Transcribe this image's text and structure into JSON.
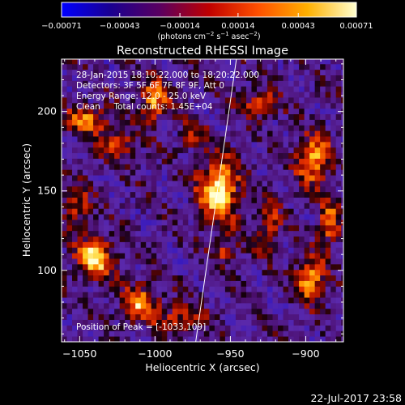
{
  "chart_data": {
    "type": "heatmap",
    "title": "Reconstructed RHESSI Image",
    "xlabel": "Heliocentric X (arcsec)",
    "ylabel": "Heliocentric Y (arcsec)",
    "xlim": [
      -1062,
      -875
    ],
    "ylim": [
      55,
      233
    ],
    "x_ticks": [
      -1050,
      -1000,
      -950,
      -900
    ],
    "y_ticks": [
      100,
      150,
      200
    ],
    "x_tick_labels": [
      "−1050",
      "−1000",
      "−950",
      "−900"
    ],
    "y_tick_labels": [
      "100",
      "150",
      "200"
    ],
    "colorbar": {
      "range": [
        -0.00071,
        0.00071
      ],
      "ticks": [
        -0.00071,
        -0.00043,
        -0.00014,
        0.00014,
        0.00043,
        0.00071
      ],
      "tick_labels": [
        "−0.00071",
        "−0.00043",
        "−0.00014",
        "0.00014",
        "0.00043",
        "0.00071"
      ],
      "units_text": "(photons cm",
      "units_exp1": "−2",
      "units_mid": " s",
      "units_exp2": "−1",
      "units_end": " asec",
      "units_exp3": "−2",
      "units_close": ")",
      "colors": [
        "#0000ff",
        "#1a0090",
        "#5a0060",
        "#c00000",
        "#ff5000",
        "#ffb000",
        "#ffffd0"
      ]
    },
    "annotations": [
      "28-Jan-2015 18:10:22.000 to 18:20:22.000",
      "Detectors: 3F 5F 6F 7F 8F 9F, Att 0",
      "Energy Range: 12.0 - 25.0 keV",
      "Clean     Total counts: 1.45E+04"
    ],
    "peak_label": "Position of Peak = [-1033,109]",
    "peak": [
      -1033,
      109
    ],
    "limb_line": {
      "x": [
        -973,
        -946
      ],
      "y": [
        55,
        233
      ]
    },
    "sources": [
      {
        "x": -958,
        "y": 150,
        "amp": 1.0,
        "sx": 9,
        "sy": 14
      },
      {
        "x": -1040,
        "y": 108,
        "amp": 0.95,
        "sx": 9,
        "sy": 8
      },
      {
        "x": -1010,
        "y": 80,
        "amp": 0.7,
        "sx": 9,
        "sy": 8
      },
      {
        "x": -983,
        "y": 70,
        "amp": 0.5,
        "sx": 10,
        "sy": 6
      },
      {
        "x": -895,
        "y": 170,
        "amp": 0.85,
        "sx": 8,
        "sy": 10
      },
      {
        "x": -897,
        "y": 95,
        "amp": 0.75,
        "sx": 7,
        "sy": 10
      },
      {
        "x": -885,
        "y": 130,
        "amp": 0.65,
        "sx": 5,
        "sy": 10
      },
      {
        "x": -1045,
        "y": 195,
        "amp": 0.65,
        "sx": 10,
        "sy": 6
      },
      {
        "x": -1025,
        "y": 180,
        "amp": 0.6,
        "sx": 8,
        "sy": 6
      },
      {
        "x": -1000,
        "y": 207,
        "amp": 0.7,
        "sx": 7,
        "sy": 9
      },
      {
        "x": -1052,
        "y": 140,
        "amp": 0.5,
        "sx": 6,
        "sy": 10
      },
      {
        "x": -925,
        "y": 130,
        "amp": 0.45,
        "sx": 6,
        "sy": 12
      },
      {
        "x": -930,
        "y": 205,
        "amp": 0.5,
        "sx": 9,
        "sy": 6
      },
      {
        "x": -955,
        "y": 112,
        "amp": 0.45,
        "sx": 6,
        "sy": 5
      },
      {
        "x": -975,
        "y": 185,
        "amp": 0.4,
        "sx": 6,
        "sy": 6
      }
    ]
  },
  "footer": {
    "timestamp": "22-Jul-2017 23:58"
  }
}
